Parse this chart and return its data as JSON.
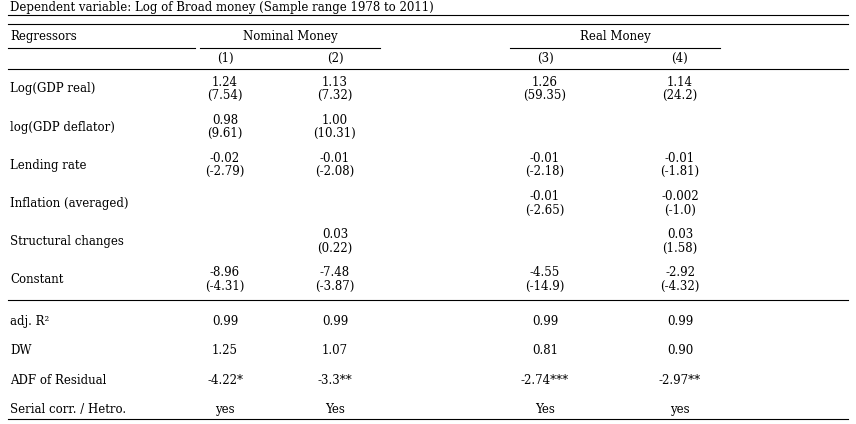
{
  "title": "Dependent variable: Log of Broad money (Sample range 1978 to 2011)",
  "rows": [
    {
      "label": "Log(GDP real)",
      "values": [
        "1.24",
        "1.13",
        "1.26",
        "1.14"
      ],
      "tvalues": [
        "(7.54)",
        "(7.32)",
        "(59.35)",
        "(24.2)"
      ]
    },
    {
      "label": "log(GDP deflator)",
      "values": [
        "0.98",
        "1.00",
        "",
        ""
      ],
      "tvalues": [
        "(9.61)",
        "(10.31)",
        "",
        ""
      ]
    },
    {
      "label": "Lending rate",
      "values": [
        "-0.02",
        "-0.01",
        "-0.01",
        "-0.01"
      ],
      "tvalues": [
        "(-2.79)",
        "(-2.08)",
        "(-2.18)",
        "(-1.81)"
      ]
    },
    {
      "label": "Inflation (averaged)",
      "values": [
        "",
        "",
        "-0.01",
        "-0.002"
      ],
      "tvalues": [
        "",
        "",
        "(-2.65)",
        "(-1.0)"
      ]
    },
    {
      "label": "Structural changes",
      "values": [
        "",
        "0.03",
        "",
        "0.03"
      ],
      "tvalues": [
        "",
        "(0.22)",
        "",
        "(1.58)"
      ]
    },
    {
      "label": "Constant",
      "values": [
        "-8.96",
        "-7.48",
        "-4.55",
        "-2.92"
      ],
      "tvalues": [
        "(-4.31)",
        "(-3.87)",
        "(-14.9)",
        "(-4.32)"
      ]
    }
  ],
  "stat_rows": [
    {
      "label": "adj. R²",
      "values": [
        "0.99",
        "0.99",
        "0.99",
        "0.99"
      ]
    },
    {
      "label": "DW",
      "values": [
        "1.25",
        "1.07",
        "0.81",
        "0.90"
      ]
    },
    {
      "label": "ADF of Residual",
      "values": [
        "-4.22*",
        "-3.3**",
        "-2.74***",
        "-2.97**"
      ]
    },
    {
      "label": "Serial corr. / Hetro.",
      "values": [
        "yes",
        "Yes",
        "Yes",
        "yes"
      ]
    }
  ],
  "bg_color": "#ffffff",
  "text_color": "#000000",
  "font_size": 8.5,
  "figsize": [
    8.56,
    4.24
  ],
  "dpi": 100
}
